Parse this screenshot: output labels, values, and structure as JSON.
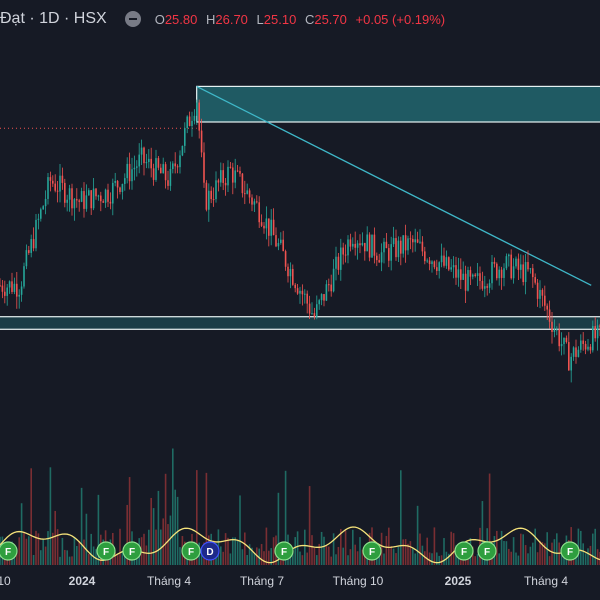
{
  "header": {
    "symbol": "Đạt · 1D · HSX",
    "ohlc": [
      {
        "key": "O",
        "value": "25.80"
      },
      {
        "key": "H",
        "value": "26.70"
      },
      {
        "key": "L",
        "value": "25.10"
      },
      {
        "key": "C",
        "value": "25.70"
      }
    ],
    "change": "+0.05 (+0.19%)"
  },
  "colors": {
    "background": "#161a25",
    "up": "#26a69a",
    "down": "#ef5350",
    "zone_fill": "#1f5a63",
    "trendline": "#3fb8c9",
    "volume_ma": "#f5e27a",
    "flag": "#2e9e3f",
    "flag_dividend": "#1e2a8a"
  },
  "chart_data": {
    "type": "candlestick",
    "x_axis_labels": [
      "10",
      "2024",
      "Tháng 4",
      "Tháng 7",
      "Tháng 10",
      "2025",
      "Tháng 4"
    ],
    "price_path": [
      {
        "date": "2023-10",
        "price": 23.0
      },
      {
        "date": "2023-11",
        "price": 28.0
      },
      {
        "date": "2023-12",
        "price": 27.0
      },
      {
        "date": "2024-01",
        "price": 27.5
      },
      {
        "date": "2024-02",
        "price": 29.0
      },
      {
        "date": "2024-03",
        "price": 28.0
      },
      {
        "date": "2024-03-28",
        "price": 32.0
      },
      {
        "date": "2024-04-05",
        "price": 27.0
      },
      {
        "date": "2024-05",
        "price": 28.5
      },
      {
        "date": "2024-06",
        "price": 26.5
      },
      {
        "date": "2024-07-25",
        "price": 21.5
      },
      {
        "date": "2024-09",
        "price": 25.5
      },
      {
        "date": "2024-10",
        "price": 24.5
      },
      {
        "date": "2024-11",
        "price": 25.0
      },
      {
        "date": "2024-12",
        "price": 24.0
      },
      {
        "date": "2025-01",
        "price": 23.0
      },
      {
        "date": "2025-02",
        "price": 24.0
      },
      {
        "date": "2025-03",
        "price": 23.5
      },
      {
        "date": "2025-04-08",
        "price": 19.5
      },
      {
        "date": "2025-05",
        "price": 20.5
      }
    ],
    "resistance_zone": {
      "from": 30.8,
      "to": 32.5
    },
    "support_zone": {
      "from": 20.9,
      "to": 21.5
    },
    "trendline": {
      "start": {
        "date": "2024-03-28",
        "price": 32.5
      },
      "end": {
        "date": "2025-05",
        "price": 23.0
      }
    },
    "dotted_level": 30.5,
    "volume_flags": [
      {
        "label": "F",
        "type": "earnings"
      },
      {
        "label": "F",
        "type": "earnings"
      },
      {
        "label": "F",
        "type": "earnings"
      },
      {
        "label": "F",
        "type": "earnings"
      },
      {
        "label": "D",
        "type": "dividend"
      },
      {
        "label": "F",
        "type": "earnings"
      },
      {
        "label": "F",
        "type": "earnings"
      },
      {
        "label": "F",
        "type": "earnings"
      },
      {
        "label": "F",
        "type": "earnings"
      },
      {
        "label": "F",
        "type": "earnings"
      }
    ]
  }
}
